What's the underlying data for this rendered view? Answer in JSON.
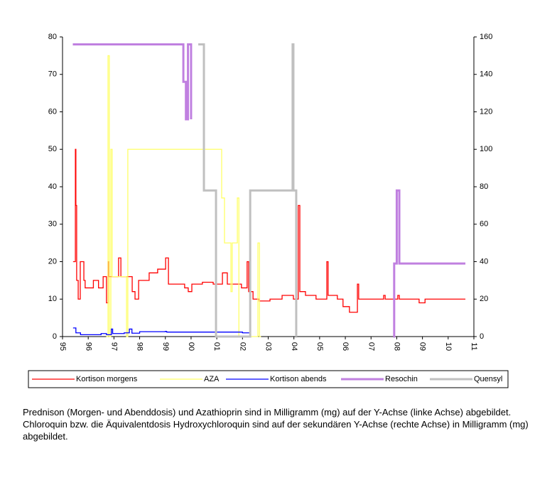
{
  "chart_data": {
    "type": "line",
    "caption": "Prednison (Morgen- und Abenddosis) und Azathioprin sind in Milligramm (mg) auf der Y-Achse (linke Achse) abgebildet. Chloroquin bzw. die Äquivalentdosis Hydroxychloroquin sind auf der sekundären Y-Achse (rechte Achse) in Milligramm (mg) abgebildet.",
    "xlim": [
      1995,
      2011
    ],
    "xticks": [
      {
        "value": 1995,
        "label": "95"
      },
      {
        "value": 1996,
        "label": "96"
      },
      {
        "value": 1997,
        "label": "97"
      },
      {
        "value": 1998,
        "label": "98"
      },
      {
        "value": 1999,
        "label": "99"
      },
      {
        "value": 2000,
        "label": "00"
      },
      {
        "value": 2001,
        "label": "01"
      },
      {
        "value": 2002,
        "label": "02"
      },
      {
        "value": 2003,
        "label": "03"
      },
      {
        "value": 2004,
        "label": "04"
      },
      {
        "value": 2005,
        "label": "05"
      },
      {
        "value": 2006,
        "label": "06"
      },
      {
        "value": 2007,
        "label": "07"
      },
      {
        "value": 2008,
        "label": "08"
      },
      {
        "value": 2009,
        "label": "09"
      },
      {
        "value": 2010,
        "label": "10"
      },
      {
        "value": 2011,
        "label": "11"
      }
    ],
    "ylim": [
      0,
      80
    ],
    "yticks": [
      0,
      10,
      20,
      30,
      40,
      50,
      60,
      70,
      80
    ],
    "y2lim": [
      0,
      160
    ],
    "y2ticks": [
      0,
      20,
      40,
      60,
      80,
      100,
      120,
      140,
      160
    ],
    "series": [
      {
        "name": "Kortison morgens",
        "color": "#ff0000",
        "x": [
          1995.41,
          1995.5,
          1995.52,
          1995.55,
          1995.61,
          1995.69,
          1995.83,
          1995.88,
          1996.2,
          1996.4,
          1996.58,
          1996.71,
          1996.77,
          1996.8,
          1997.18,
          1997.27,
          1997.71,
          1997.82,
          1997.96,
          1998.23,
          1998.37,
          1998.7,
          1999.01,
          1999.12,
          1999.75,
          1999.89,
          2000.03,
          2000.44,
          2000.86,
          2001.22,
          2001.41,
          2001.69,
          2001.96,
          2002.18,
          2002.24,
          2002.41,
          2002.65,
          2003.07,
          2003.54,
          2003.98,
          2004.17,
          2004.23,
          2004.45,
          2004.86,
          2005.28,
          2005.33,
          2005.69,
          2005.91,
          2006.16,
          2006.47,
          2006.52,
          2007.49,
          2007.55,
          2008.04,
          2008.1,
          2008.87,
          2009.1,
          2010.67
        ],
        "values": [
          20,
          50,
          35,
          15,
          10,
          20,
          15,
          13,
          15,
          13,
          16,
          9,
          20,
          16,
          21,
          16,
          12,
          10,
          15,
          15,
          17,
          18,
          21,
          14,
          13,
          12,
          14,
          14.5,
          14,
          17,
          14,
          14,
          13,
          20,
          12,
          10,
          9.5,
          10,
          11,
          10,
          35,
          12,
          11,
          10,
          20,
          11,
          10,
          8,
          6.5,
          14,
          10,
          11,
          10,
          11,
          10,
          9,
          10,
          10
        ]
      },
      {
        "name": "AZA",
        "color": "#ffff66",
        "x": [
          1996.7,
          1996.77,
          1996.82,
          1996.88,
          1996.93,
          1997.49,
          1997.54,
          2001.19,
          2001.3,
          2001.55,
          2001.6,
          2001.8,
          2001.86,
          2002.6,
          2002.66,
          2002.72
        ],
        "values": [
          0,
          75,
          0,
          50,
          16,
          0,
          50,
          37,
          25,
          12,
          25,
          37,
          0,
          25,
          0,
          0
        ]
      },
      {
        "name": "Kortison abends",
        "color": "#0000ff",
        "x": [
          1995.41,
          1995.52,
          1995.7,
          1996.5,
          1996.71,
          1996.9,
          1996.95,
          1997.4,
          1997.6,
          1997.7,
          1998.0,
          1999.0,
          1999.05,
          2001.0,
          2002.0,
          2002.3
        ],
        "values": [
          2.3,
          1,
          0.5,
          0.8,
          0.5,
          2,
          0.8,
          1,
          2,
          0.9,
          1.3,
          1.4,
          1.2,
          1.2,
          1,
          0
        ]
      },
      {
        "name": "Resochin",
        "color": "#c080e0",
        "axis": "y2",
        "x": [
          1995.4,
          1999.7,
          1999.8,
          1999.88,
          2000.0,
          2000.3,
          2007.87,
          2007.9,
          2008.0,
          2008.1,
          2010.67
        ],
        "values": [
          156,
          136,
          116,
          156,
          116,
          null,
          0,
          39,
          78,
          39,
          39
        ]
      },
      {
        "name": "Quensyl",
        "color": "#c0c0c0",
        "axis": "y2",
        "x": [
          2000.28,
          2000.5,
          2000.97,
          2002.3,
          2003.95,
          2003.98,
          2004.09
        ],
        "values": [
          156,
          78,
          0,
          78,
          156,
          78,
          0
        ]
      }
    ]
  }
}
